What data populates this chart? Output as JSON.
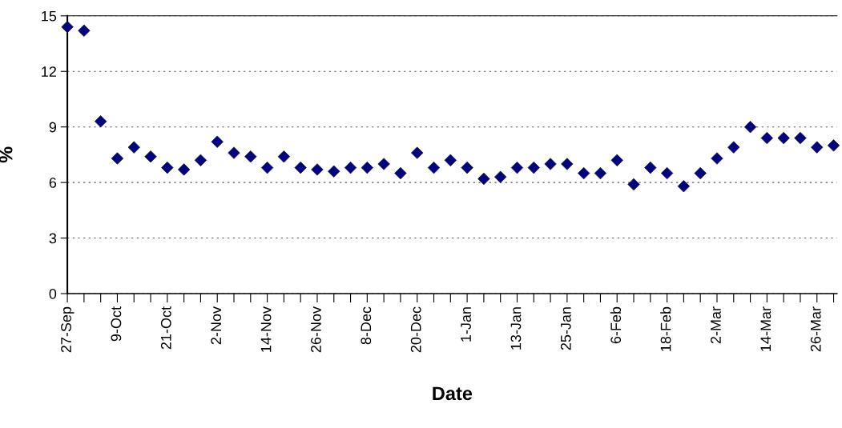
{
  "chart_data": {
    "type": "scatter",
    "xlabel": "Date",
    "ylabel": "%",
    "categories": [
      "27-Sep",
      null,
      null,
      "9-Oct",
      null,
      null,
      "21-Oct",
      null,
      null,
      "2-Nov",
      null,
      null,
      "14-Nov",
      null,
      null,
      "26-Nov",
      null,
      null,
      "8-Dec",
      null,
      null,
      "20-Dec",
      null,
      null,
      "1-Jan",
      null,
      null,
      "13-Jan",
      null,
      null,
      "25-Jan",
      null,
      null,
      "6-Feb",
      null,
      null,
      "18-Feb",
      null,
      null,
      "2-Mar",
      null,
      null,
      "14-Mar",
      null,
      null,
      "26-Mar",
      null
    ],
    "series": [
      {
        "color": "#000080",
        "values": [
          14.4,
          14.2,
          9.3,
          7.3,
          7.9,
          7.4,
          6.8,
          6.7,
          7.2,
          8.2,
          7.6,
          7.4,
          6.8,
          7.4,
          6.8,
          6.7,
          6.6,
          6.8,
          6.8,
          7.0,
          6.5,
          7.6,
          6.8,
          7.2,
          6.8,
          6.2,
          6.3,
          6.8,
          6.8,
          7.0,
          7.0,
          6.5,
          6.5,
          7.2,
          5.9,
          6.8,
          6.5,
          5.8,
          6.5,
          7.3,
          7.9,
          9.0,
          8.4,
          8.4,
          8.4,
          7.9,
          8.0
        ]
      }
    ],
    "marker": "diamond",
    "grid": "y",
    "ylim": [
      0,
      15
    ],
    "yticks": [
      0,
      3,
      6,
      9,
      12,
      15
    ]
  }
}
